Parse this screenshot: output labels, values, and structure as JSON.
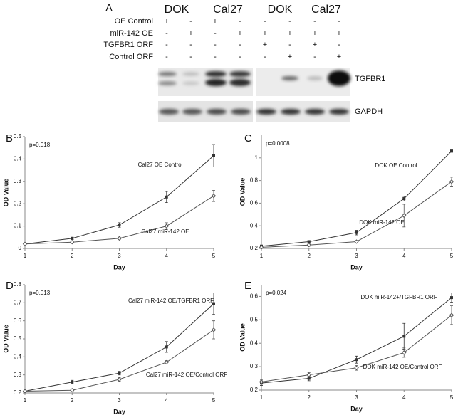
{
  "blot": {
    "label": "A",
    "groups": [
      "DOK",
      "Cal27",
      "DOK",
      "Cal27"
    ],
    "rows": [
      {
        "label": "OE Control",
        "marks": [
          "+",
          "-",
          "+",
          "-",
          "-",
          "-",
          "-",
          "-"
        ]
      },
      {
        "label": "miR-142 OE",
        "marks": [
          "-",
          "+",
          "-",
          "+",
          "+",
          "+",
          "+",
          "+"
        ]
      },
      {
        "label": "TGFBR1 ORF",
        "marks": [
          "-",
          "-",
          "-",
          "-",
          "+",
          "-",
          "+",
          "-"
        ]
      },
      {
        "label": "Control ORF",
        "marks": [
          "-",
          "-",
          "-",
          "-",
          "-",
          "+",
          "-",
          "+"
        ]
      }
    ],
    "bands": [
      "TGFBR1",
      "GAPDH"
    ]
  },
  "chart_data": [
    {
      "type": "line",
      "label": "B",
      "p_value": "p=0.018",
      "xlabel": "Day",
      "ylabel": "OD Value",
      "x": [
        1,
        2,
        3,
        4,
        5
      ],
      "xlim": [
        1,
        5
      ],
      "xticks": [
        1,
        2,
        3,
        4,
        5
      ],
      "ylim": [
        0,
        0.5
      ],
      "yticks": [
        0,
        0.1,
        0.2,
        0.3,
        0.4,
        0.5
      ],
      "series": [
        {
          "name": "Cal27 OE Control",
          "color": "#333333",
          "values": [
            0.02,
            0.045,
            0.105,
            0.23,
            0.415
          ],
          "errors": [
            0.005,
            0.005,
            0.01,
            0.025,
            0.05
          ]
        },
        {
          "name": "Cal27 miR-142 OE",
          "color": "#555555",
          "values": [
            0.02,
            0.028,
            0.045,
            0.1,
            0.235
          ],
          "errors": [
            0.005,
            0.003,
            0.005,
            0.015,
            0.025
          ]
        }
      ]
    },
    {
      "type": "line",
      "label": "C",
      "p_value": "p=0.0008",
      "xlabel": "Day",
      "ylabel": "OD Value",
      "x": [
        1,
        2,
        3,
        4,
        5
      ],
      "xlim": [
        1,
        5
      ],
      "xticks": [
        1,
        2,
        3,
        4,
        5
      ],
      "ylim": [
        0.2,
        1.2
      ],
      "yticks": [
        0.2,
        0.4,
        0.6,
        0.8,
        1
      ],
      "series": [
        {
          "name": "DOK OE Control",
          "color": "#333333",
          "values": [
            0.22,
            0.26,
            0.34,
            0.64,
            1.06
          ],
          "errors": [
            0.01,
            0.01,
            0.02,
            0.02,
            0.01
          ]
        },
        {
          "name": "DOK miR-142 OE",
          "color": "#555555",
          "values": [
            0.21,
            0.23,
            0.26,
            0.49,
            0.79
          ],
          "errors": [
            0.01,
            0.01,
            0.01,
            0.1,
            0.04
          ]
        }
      ]
    },
    {
      "type": "line",
      "label": "D",
      "p_value": "p=0.013",
      "xlabel": "Day",
      "ylabel": "OD Value",
      "x": [
        1,
        2,
        3,
        4,
        5
      ],
      "xlim": [
        1,
        5
      ],
      "xticks": [
        1,
        2,
        3,
        4,
        5
      ],
      "ylim": [
        0.2,
        0.8
      ],
      "yticks": [
        0.2,
        0.3,
        0.4,
        0.5,
        0.6,
        0.7,
        0.8
      ],
      "series": [
        {
          "name": "Cal27 miR-142 OE/TGFBR1 ORF",
          "color": "#333333",
          "values": [
            0.21,
            0.26,
            0.31,
            0.455,
            0.695
          ],
          "errors": [
            0.005,
            0.01,
            0.01,
            0.03,
            0.06
          ]
        },
        {
          "name": "Cal27 miR-142 OE/Control ORF",
          "color": "#555555",
          "values": [
            0.21,
            0.215,
            0.275,
            0.37,
            0.55
          ],
          "errors": [
            0.005,
            0.005,
            0.01,
            0.01,
            0.05
          ]
        }
      ]
    },
    {
      "type": "line",
      "label": "E",
      "p_value": "p=0.024",
      "xlabel": "Day",
      "ylabel": "OD Value",
      "x": [
        1,
        2,
        3,
        4,
        5
      ],
      "xlim": [
        1,
        5
      ],
      "xticks": [
        1,
        2,
        3,
        4,
        5
      ],
      "ylim": [
        0.2,
        0.65
      ],
      "yticks": [
        0.2,
        0.3,
        0.4,
        0.5,
        0.6
      ],
      "series": [
        {
          "name": "DOK miR-142+/TGFBR1 ORF",
          "color": "#333333",
          "values": [
            0.23,
            0.25,
            0.33,
            0.43,
            0.595
          ],
          "errors": [
            0.01,
            0.01,
            0.015,
            0.055,
            0.02
          ]
        },
        {
          "name": "DOK miR-142 OE/Control ORF",
          "color": "#555555",
          "values": [
            0.235,
            0.265,
            0.295,
            0.36,
            0.52
          ],
          "errors": [
            0.01,
            0.01,
            0.01,
            0.02,
            0.04
          ]
        }
      ]
    }
  ]
}
